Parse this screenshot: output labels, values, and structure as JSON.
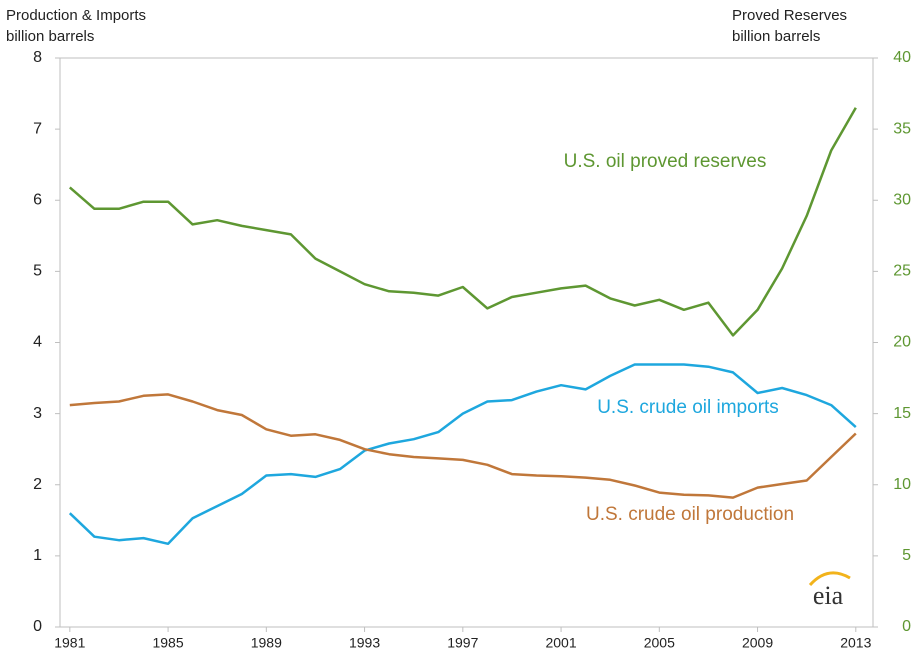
{
  "chart_data": {
    "type": "line",
    "ylabel": [
      "Production & Imports",
      "billion barrels"
    ],
    "y2label": [
      "Proved Reserves",
      "billion barrels"
    ],
    "logo": "eia",
    "x": [
      1981,
      1982,
      1983,
      1984,
      1985,
      1986,
      1987,
      1988,
      1989,
      1990,
      1991,
      1992,
      1993,
      1994,
      1995,
      1996,
      1997,
      1998,
      1999,
      2000,
      2001,
      2002,
      2003,
      2004,
      2005,
      2006,
      2007,
      2008,
      2009,
      2010,
      2011,
      2012,
      2013
    ],
    "xlim": [
      1980.6,
      2013.7
    ],
    "xticks": [
      1981,
      1985,
      1989,
      1993,
      1997,
      2001,
      2005,
      2009,
      2013
    ],
    "ylim": [
      0,
      8
    ],
    "yticks": [
      0,
      1,
      2,
      3,
      4,
      5,
      6,
      7,
      8
    ],
    "y2lim": [
      0,
      40
    ],
    "y2ticks": [
      0,
      5,
      10,
      15,
      20,
      25,
      30,
      35,
      40
    ],
    "series": [
      {
        "name": "U.S. oil proved reserves",
        "color": "#5e9732",
        "axis": "y2",
        "values": [
          30.9,
          29.4,
          29.4,
          29.9,
          29.9,
          28.3,
          28.6,
          28.2,
          27.9,
          27.6,
          25.9,
          25.0,
          24.1,
          23.6,
          23.5,
          23.3,
          23.9,
          22.4,
          23.2,
          23.5,
          23.8,
          24.0,
          23.1,
          22.6,
          23.0,
          22.3,
          22.8,
          20.5,
          22.3,
          25.2,
          28.9,
          33.5,
          36.5
        ]
      },
      {
        "name": "U.S. crude oil imports",
        "color": "#1ea7de",
        "values": [
          1.6,
          1.27,
          1.22,
          1.25,
          1.17,
          1.53,
          1.7,
          1.87,
          2.13,
          2.15,
          2.11,
          2.22,
          2.48,
          2.58,
          2.64,
          2.74,
          3.0,
          3.17,
          3.19,
          3.31,
          3.4,
          3.34,
          3.53,
          3.69,
          3.69,
          3.69,
          3.66,
          3.58,
          3.29,
          3.36,
          3.26,
          3.12,
          2.81
        ]
      },
      {
        "name": "U.S. crude oil production",
        "color": "#c0773a",
        "values": [
          3.12,
          3.15,
          3.17,
          3.25,
          3.27,
          3.17,
          3.05,
          2.98,
          2.78,
          2.69,
          2.71,
          2.63,
          2.5,
          2.43,
          2.39,
          2.37,
          2.35,
          2.28,
          2.15,
          2.13,
          2.12,
          2.1,
          2.07,
          1.99,
          1.89,
          1.86,
          1.85,
          1.82,
          1.96,
          2.01,
          2.06,
          2.39,
          2.72
        ]
      }
    ]
  }
}
